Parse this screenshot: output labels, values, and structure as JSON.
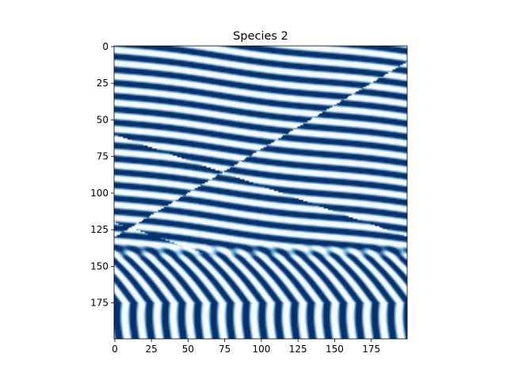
{
  "chart_data": {
    "type": "heatmap",
    "title": "Species 2",
    "colormap": "Blues",
    "colors": {
      "low": "#f7fbff",
      "mid": "#6baed6",
      "high": "#08306b"
    },
    "grid": false,
    "image_shape": [
      200,
      200
    ],
    "xlim": [
      -0.5,
      199.5
    ],
    "ylim": [
      199.5,
      -0.5
    ],
    "x_ticks": [
      0,
      25,
      50,
      75,
      100,
      125,
      150,
      175
    ],
    "x_tick_labels": [
      "0",
      "25",
      "50",
      "75",
      "100",
      "125",
      "150",
      "175"
    ],
    "y_ticks": [
      0,
      25,
      50,
      75,
      100,
      125,
      150,
      175
    ],
    "y_tick_labels": [
      "0",
      "25",
      "50",
      "75",
      "100",
      "125",
      "150",
      "175"
    ],
    "pattern": {
      "description": "Turing-type labyrinth of dark blue stripes on white",
      "upper_region_rows": [
        0,
        140
      ],
      "upper_stripe_period_rows": 9,
      "upper_stripe_tilt_rows_per_col": -0.12,
      "lower_region_rows": [
        140,
        200
      ],
      "lower_stripe_period_cols": 11
    }
  }
}
